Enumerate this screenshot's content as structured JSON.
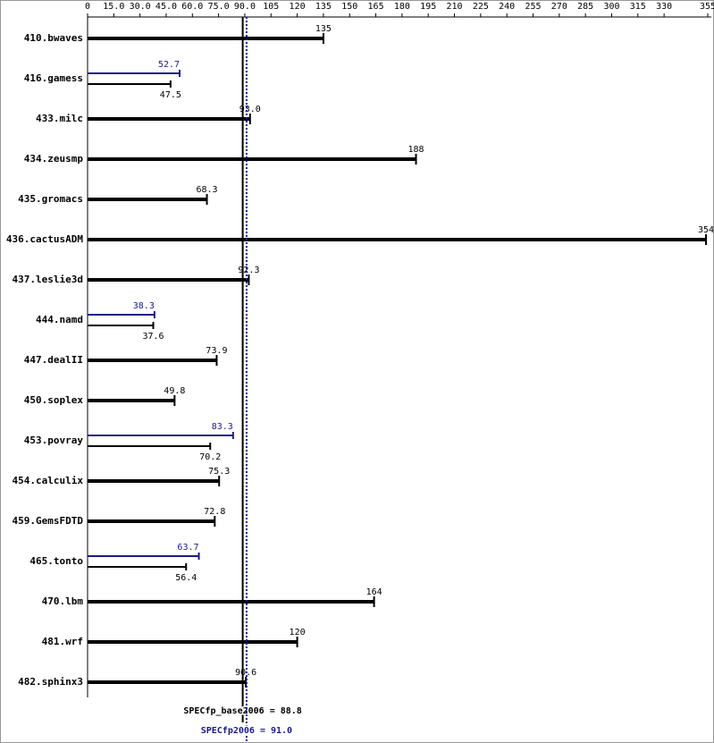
{
  "chart_data": {
    "type": "spec-bar",
    "categories": [
      "410.bwaves",
      "416.gamess",
      "433.milc",
      "434.zeusmp",
      "435.gromacs",
      "436.cactusADM",
      "437.leslie3d",
      "444.namd",
      "447.dealII",
      "450.soplex",
      "453.povray",
      "454.calculix",
      "459.GemsFDTD",
      "465.tonto",
      "470.lbm",
      "481.wrf",
      "482.sphinx3"
    ],
    "series": [
      {
        "color": "#000000",
        "values": [
          135,
          47.5,
          93.0,
          188,
          68.3,
          354,
          92.3,
          37.6,
          73.9,
          49.8,
          70.2,
          75.3,
          72.8,
          56.4,
          164,
          120,
          90.6
        ],
        "value_labels": [
          "135",
          "47.5",
          "93.0",
          "188",
          "68.3",
          "354",
          "92.3",
          "37.6",
          "73.9",
          "49.8",
          "70.2",
          "75.3",
          "72.8",
          "56.4",
          "164",
          "120",
          "90.6"
        ]
      },
      {
        "color": "#1a1a8c",
        "values": [
          null,
          52.7,
          null,
          null,
          null,
          null,
          null,
          38.3,
          null,
          null,
          83.3,
          null,
          null,
          63.7,
          null,
          null,
          null
        ],
        "value_labels": [
          null,
          "52.7",
          null,
          null,
          null,
          null,
          null,
          "38.3",
          null,
          null,
          "83.3",
          null,
          null,
          "63.7",
          null,
          null,
          null
        ]
      }
    ],
    "xlim": [
      0,
      355
    ],
    "xticks": [
      0,
      {
        "value": 15,
        "label": "15.0"
      },
      {
        "value": 30,
        "label": "30.0"
      },
      {
        "value": 45,
        "label": "45.0"
      },
      {
        "value": 60,
        "label": "60.0"
      },
      {
        "value": 75,
        "label": "75.0"
      },
      {
        "value": 90,
        "label": "90.0"
      },
      105,
      120,
      135,
      150,
      165,
      180,
      195,
      210,
      225,
      240,
      255,
      270,
      285,
      300,
      315,
      330,
      355
    ],
    "reference_lines": [
      {
        "label": "SPECfp_base2006 = 88.8",
        "value": 88.8,
        "color": "#000000",
        "dash": false
      },
      {
        "label": "SPECfp2006 = 91.0",
        "value": 91.0,
        "color": "#1a1a8c",
        "dash": true
      }
    ]
  }
}
